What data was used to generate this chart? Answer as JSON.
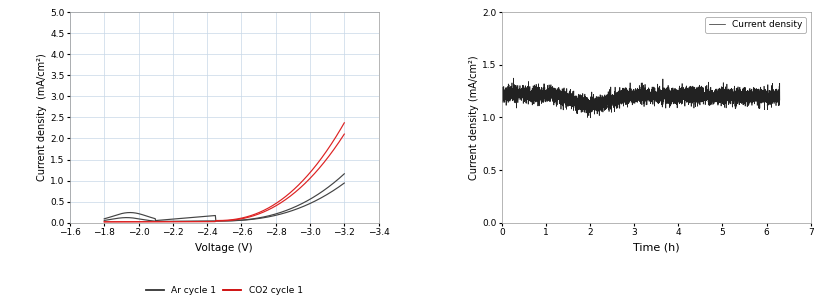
{
  "left": {
    "xlabel": "Voltage (V)",
    "ylabel": "Current density  (mA/cm²)",
    "xlim": [
      -1.6,
      -3.4
    ],
    "ylim": [
      0.0,
      5.0
    ],
    "xticks": [
      -1.6,
      -1.8,
      -2.0,
      -2.2,
      -2.4,
      -2.6,
      -2.8,
      -3.0,
      -3.2,
      -3.4
    ],
    "yticks": [
      0.0,
      0.5,
      1.0,
      1.5,
      2.0,
      2.5,
      3.0,
      3.5,
      4.0,
      4.5,
      5.0
    ],
    "legend_labels": [
      "Ar cycle 1",
      "CO2 cycle 1"
    ],
    "legend_colors": [
      "#333333",
      "#cc0000"
    ],
    "ar_color": "#444444",
    "co2_color": "#dd2222",
    "background_color": "#ffffff",
    "grid_color": "#c8d8e8"
  },
  "right": {
    "xlabel": "Time (h)",
    "ylabel": "Current density (mA/cm²)",
    "xlim": [
      0,
      7
    ],
    "ylim": [
      0.0,
      2.0
    ],
    "xticks": [
      0,
      1,
      2,
      3,
      4,
      5,
      6,
      7
    ],
    "yticks": [
      0.0,
      0.5,
      1.0,
      1.5,
      2.0
    ],
    "legend_label": "Current density",
    "line_color": "#222222",
    "background_color": "#ffffff"
  }
}
